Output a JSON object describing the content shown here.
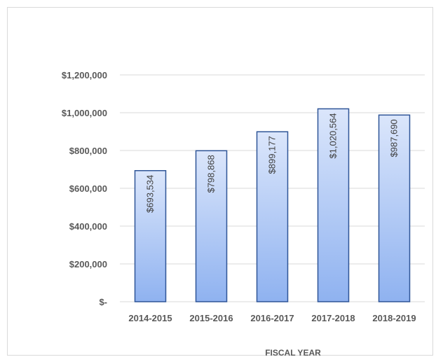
{
  "chart_data": {
    "type": "bar",
    "categories": [
      "2014-2015",
      "2015-2016",
      "2016-2017",
      "2017-2018",
      "2018-2019"
    ],
    "values": [
      693534,
      798868,
      899177,
      1020564,
      987690
    ],
    "data_labels": [
      "$693,534",
      "$798,868",
      "$899,177",
      "$1,020,564",
      "$987,690"
    ],
    "y_tick_labels": [
      "$-",
      "$200,000",
      "$400,000",
      "$600,000",
      "$800,000",
      "$1,000,000",
      "$1,200,000"
    ],
    "y_ticks": [
      0,
      200000,
      400000,
      600000,
      800000,
      1000000,
      1200000
    ],
    "ylim": [
      0,
      1200000
    ],
    "title": "",
    "xlabel": "FISCAL YEAR",
    "ylabel": "",
    "grid": true,
    "bar_fill_top": "#dbe6fb",
    "bar_fill_bottom": "#8fb2f0",
    "bar_border": "#2f5597",
    "grid_color": "#d9d9d9",
    "text_color": "#595959"
  }
}
